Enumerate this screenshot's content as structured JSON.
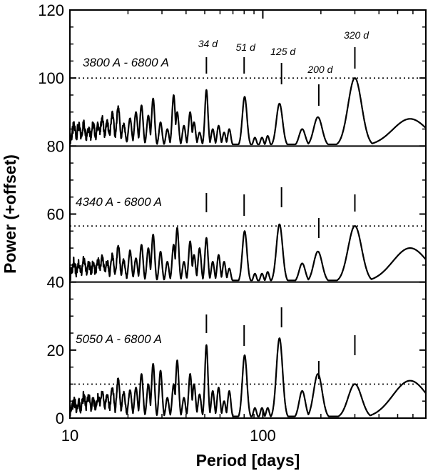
{
  "chart_data": {
    "type": "line",
    "xlabel": "Period [days]",
    "ylabel": "Power (+offset)",
    "xscale": "log",
    "xlim": [
      10,
      700
    ],
    "ylim": [
      0,
      120
    ],
    "xticks": [
      {
        "value": 10,
        "label": "10"
      },
      {
        "value": 100,
        "label": "100"
      }
    ],
    "yticks": [
      {
        "value": 0,
        "label": "0"
      },
      {
        "value": 20,
        "label": "20"
      },
      {
        "value": 40,
        "label": "40"
      },
      {
        "value": 60,
        "label": "60"
      },
      {
        "value": 80,
        "label": "80"
      },
      {
        "value": 100,
        "label": "100"
      },
      {
        "value": 120,
        "label": "120"
      }
    ],
    "period_markers": [
      {
        "label": "34 d",
        "value": 34
      },
      {
        "label": "51 d",
        "value": 51
      },
      {
        "label": "125 d",
        "value": 125
      },
      {
        "label": "200 d",
        "value": 200
      },
      {
        "label": "320 d",
        "value": 320
      }
    ],
    "series": [
      {
        "name": "3800 A - 6800 A",
        "baseline": 80,
        "significance_level": 100,
        "marker_periods": [
          51,
          80,
          125,
          195,
          300
        ],
        "peaks": [
          {
            "x": 51,
            "y": 16.5,
            "w": 0.008
          },
          {
            "x": 80.5,
            "y": 14.5,
            "w": 0.012
          },
          {
            "x": 122,
            "y": 12.5,
            "w": 0.016
          },
          {
            "x": 193,
            "y": 8.5,
            "w": 0.022
          },
          {
            "x": 300,
            "y": 20,
            "w": 0.035
          },
          {
            "x": 580,
            "y": 8,
            "w": 0.09
          },
          {
            "x": 160,
            "y": 5,
            "w": 0.016
          },
          {
            "x": 55,
            "y": 5,
            "w": 0.008
          },
          {
            "x": 59,
            "y": 6,
            "w": 0.008
          },
          {
            "x": 63,
            "y": 4,
            "w": 0.008
          },
          {
            "x": 67,
            "y": 5,
            "w": 0.008
          },
          {
            "x": 44,
            "y": 7,
            "w": 0.008
          },
          {
            "x": 47,
            "y": 4,
            "w": 0.008
          },
          {
            "x": 42,
            "y": 10,
            "w": 0.008
          },
          {
            "x": 39,
            "y": 6,
            "w": 0.008
          },
          {
            "x": 36,
            "y": 10,
            "w": 0.008
          },
          {
            "x": 34.5,
            "y": 15,
            "w": 0.008
          },
          {
            "x": 32,
            "y": 5,
            "w": 0.008
          },
          {
            "x": 29.5,
            "y": 7,
            "w": 0.008
          },
          {
            "x": 27,
            "y": 14,
            "w": 0.008
          },
          {
            "x": 25.5,
            "y": 9,
            "w": 0.008
          },
          {
            "x": 23.5,
            "y": 12,
            "w": 0.008
          },
          {
            "x": 22,
            "y": 10,
            "w": 0.008
          },
          {
            "x": 20.5,
            "y": 8,
            "w": 0.008
          },
          {
            "x": 19,
            "y": 6,
            "w": 0.008
          },
          {
            "x": 17.8,
            "y": 11,
            "w": 0.008
          },
          {
            "x": 16.6,
            "y": 9,
            "w": 0.008
          },
          {
            "x": 15.6,
            "y": 6,
            "w": 0.008
          },
          {
            "x": 14.7,
            "y": 7,
            "w": 0.008
          },
          {
            "x": 14,
            "y": 5,
            "w": 0.008
          },
          {
            "x": 13.2,
            "y": 5,
            "w": 0.008
          },
          {
            "x": 12.5,
            "y": 4,
            "w": 0.008
          },
          {
            "x": 11.8,
            "y": 5,
            "w": 0.008
          },
          {
            "x": 11.1,
            "y": 4,
            "w": 0.008
          },
          {
            "x": 10.5,
            "y": 4,
            "w": 0.008
          },
          {
            "x": 91,
            "y": 2.5,
            "w": 0.008
          },
          {
            "x": 99,
            "y": 2.5,
            "w": 0.008
          },
          {
            "x": 106,
            "y": 3,
            "w": 0.008
          }
        ]
      },
      {
        "name": "4340 A - 6800 A",
        "baseline": 40,
        "significance_level": 56.5,
        "marker_periods": [
          51,
          80,
          125,
          195,
          300
        ],
        "peaks": [
          {
            "x": 51,
            "y": 13,
            "w": 0.008
          },
          {
            "x": 80.5,
            "y": 15,
            "w": 0.012
          },
          {
            "x": 122,
            "y": 17,
            "w": 0.016
          },
          {
            "x": 193,
            "y": 9,
            "w": 0.022
          },
          {
            "x": 300,
            "y": 16.5,
            "w": 0.035
          },
          {
            "x": 580,
            "y": 10,
            "w": 0.09
          },
          {
            "x": 160,
            "y": 5.5,
            "w": 0.016
          },
          {
            "x": 55,
            "y": 6,
            "w": 0.008
          },
          {
            "x": 59,
            "y": 8,
            "w": 0.008
          },
          {
            "x": 63,
            "y": 6,
            "w": 0.008
          },
          {
            "x": 67,
            "y": 4,
            "w": 0.008
          },
          {
            "x": 44,
            "y": 8,
            "w": 0.008
          },
          {
            "x": 47,
            "y": 10,
            "w": 0.008
          },
          {
            "x": 42,
            "y": 12,
            "w": 0.008
          },
          {
            "x": 39,
            "y": 6,
            "w": 0.008
          },
          {
            "x": 36,
            "y": 16,
            "w": 0.008
          },
          {
            "x": 34.5,
            "y": 11,
            "w": 0.008
          },
          {
            "x": 32,
            "y": 6,
            "w": 0.008
          },
          {
            "x": 29.5,
            "y": 9,
            "w": 0.008
          },
          {
            "x": 27,
            "y": 14,
            "w": 0.008
          },
          {
            "x": 25.5,
            "y": 10,
            "w": 0.008
          },
          {
            "x": 23.5,
            "y": 11,
            "w": 0.008
          },
          {
            "x": 22,
            "y": 7,
            "w": 0.008
          },
          {
            "x": 20.5,
            "y": 9,
            "w": 0.008
          },
          {
            "x": 19,
            "y": 6,
            "w": 0.008
          },
          {
            "x": 17.8,
            "y": 10,
            "w": 0.008
          },
          {
            "x": 16.6,
            "y": 7,
            "w": 0.008
          },
          {
            "x": 15.6,
            "y": 5,
            "w": 0.008
          },
          {
            "x": 14.7,
            "y": 6,
            "w": 0.008
          },
          {
            "x": 14,
            "y": 5,
            "w": 0.008
          },
          {
            "x": 13.2,
            "y": 4,
            "w": 0.008
          },
          {
            "x": 12.5,
            "y": 4,
            "w": 0.008
          },
          {
            "x": 11.8,
            "y": 5,
            "w": 0.008
          },
          {
            "x": 11.1,
            "y": 4,
            "w": 0.008
          },
          {
            "x": 10.5,
            "y": 4,
            "w": 0.008
          },
          {
            "x": 91,
            "y": 2.5,
            "w": 0.008
          },
          {
            "x": 99,
            "y": 2.5,
            "w": 0.008
          },
          {
            "x": 106,
            "y": 3,
            "w": 0.008
          }
        ]
      },
      {
        "name": "5050 A - 6800 A",
        "baseline": 0,
        "significance_level": 10,
        "marker_periods": [
          51,
          80,
          125,
          195,
          300
        ],
        "peaks": [
          {
            "x": 51,
            "y": 21.5,
            "w": 0.008
          },
          {
            "x": 80.5,
            "y": 18.5,
            "w": 0.012
          },
          {
            "x": 122,
            "y": 23.5,
            "w": 0.016
          },
          {
            "x": 193,
            "y": 13,
            "w": 0.022
          },
          {
            "x": 300,
            "y": 10,
            "w": 0.035
          },
          {
            "x": 580,
            "y": 11,
            "w": 0.09
          },
          {
            "x": 160,
            "y": 8,
            "w": 0.016
          },
          {
            "x": 55,
            "y": 8,
            "w": 0.008
          },
          {
            "x": 59,
            "y": 9,
            "w": 0.008
          },
          {
            "x": 63,
            "y": 5,
            "w": 0.008
          },
          {
            "x": 67,
            "y": 8,
            "w": 0.008
          },
          {
            "x": 44,
            "y": 10,
            "w": 0.008
          },
          {
            "x": 47,
            "y": 7,
            "w": 0.008
          },
          {
            "x": 42,
            "y": 13,
            "w": 0.008
          },
          {
            "x": 39,
            "y": 6,
            "w": 0.008
          },
          {
            "x": 36,
            "y": 17,
            "w": 0.008
          },
          {
            "x": 34.5,
            "y": 10,
            "w": 0.008
          },
          {
            "x": 32,
            "y": 6,
            "w": 0.008
          },
          {
            "x": 29.5,
            "y": 14,
            "w": 0.008
          },
          {
            "x": 27,
            "y": 16,
            "w": 0.008
          },
          {
            "x": 25.5,
            "y": 10,
            "w": 0.008
          },
          {
            "x": 23.5,
            "y": 13,
            "w": 0.008
          },
          {
            "x": 22,
            "y": 9,
            "w": 0.008
          },
          {
            "x": 20.5,
            "y": 8,
            "w": 0.008
          },
          {
            "x": 19,
            "y": 7,
            "w": 0.008
          },
          {
            "x": 17.8,
            "y": 11,
            "w": 0.008
          },
          {
            "x": 16.6,
            "y": 8,
            "w": 0.008
          },
          {
            "x": 15.6,
            "y": 6,
            "w": 0.008
          },
          {
            "x": 14.7,
            "y": 7,
            "w": 0.008
          },
          {
            "x": 14,
            "y": 5,
            "w": 0.008
          },
          {
            "x": 13.2,
            "y": 4,
            "w": 0.008
          },
          {
            "x": 12.5,
            "y": 5,
            "w": 0.008
          },
          {
            "x": 11.8,
            "y": 5,
            "w": 0.008
          },
          {
            "x": 11.1,
            "y": 3,
            "w": 0.008
          },
          {
            "x": 10.5,
            "y": 3,
            "w": 0.008
          },
          {
            "x": 91,
            "y": 3,
            "w": 0.008
          },
          {
            "x": 99,
            "y": 3,
            "w": 0.008
          },
          {
            "x": 106,
            "y": 3,
            "w": 0.008
          }
        ]
      }
    ]
  }
}
